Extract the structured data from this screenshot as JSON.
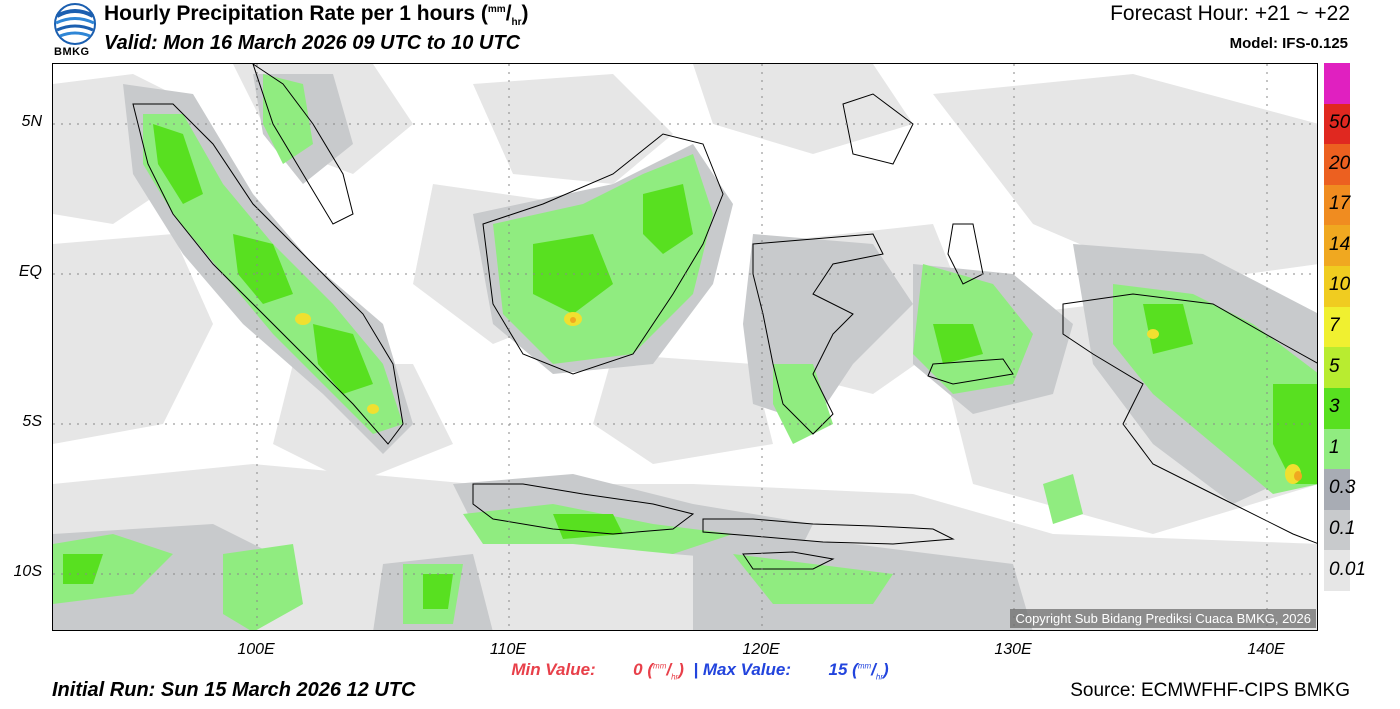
{
  "header": {
    "logo_text": "BMKG",
    "title_main": "Hourly Precipitation Rate per 1 hours (",
    "title_unit_num": "mm",
    "title_unit_den": "hr",
    "title_close": ")",
    "valid": "Valid: Mon 16 March 2026 09 UTC to 10 UTC",
    "forecast_hour": "Forecast Hour: +21 ~ +22",
    "model": "Model: IFS-0.125"
  },
  "axes": {
    "lat_labels": [
      "5N",
      "EQ",
      "5S",
      "10S"
    ],
    "lon_labels": [
      "100E",
      "110E",
      "120E",
      "130E",
      "140E"
    ]
  },
  "copyright": "Copyright Sub Bidang Prediksi Cuaca BMKG, 2026",
  "colorbar": {
    "labels": [
      "50",
      "20",
      "17",
      "14",
      "10",
      "7",
      "5",
      "3",
      "1",
      "0.3",
      "0.1",
      "0.01"
    ],
    "colors": [
      "#e020c0",
      "#e02820",
      "#ec6020",
      "#f08c20",
      "#f0a820",
      "#f0cc20",
      "#f0f030",
      "#b8ec30",
      "#58e020",
      "#90ec80",
      "#a8acb4",
      "#c8cacc",
      "#e6e6e6"
    ]
  },
  "stats": {
    "min_label": "Min Value:",
    "min_value": "0",
    "max_label": "Max Value:",
    "max_value": "15",
    "unit_num": "mm",
    "unit_den": "hr",
    "separator": "|"
  },
  "footer": {
    "initial_run": "Initial Run: Sun 15 March 2026 12 UTC",
    "source": "Source: ECMWFHF-CIPS BMKG"
  }
}
